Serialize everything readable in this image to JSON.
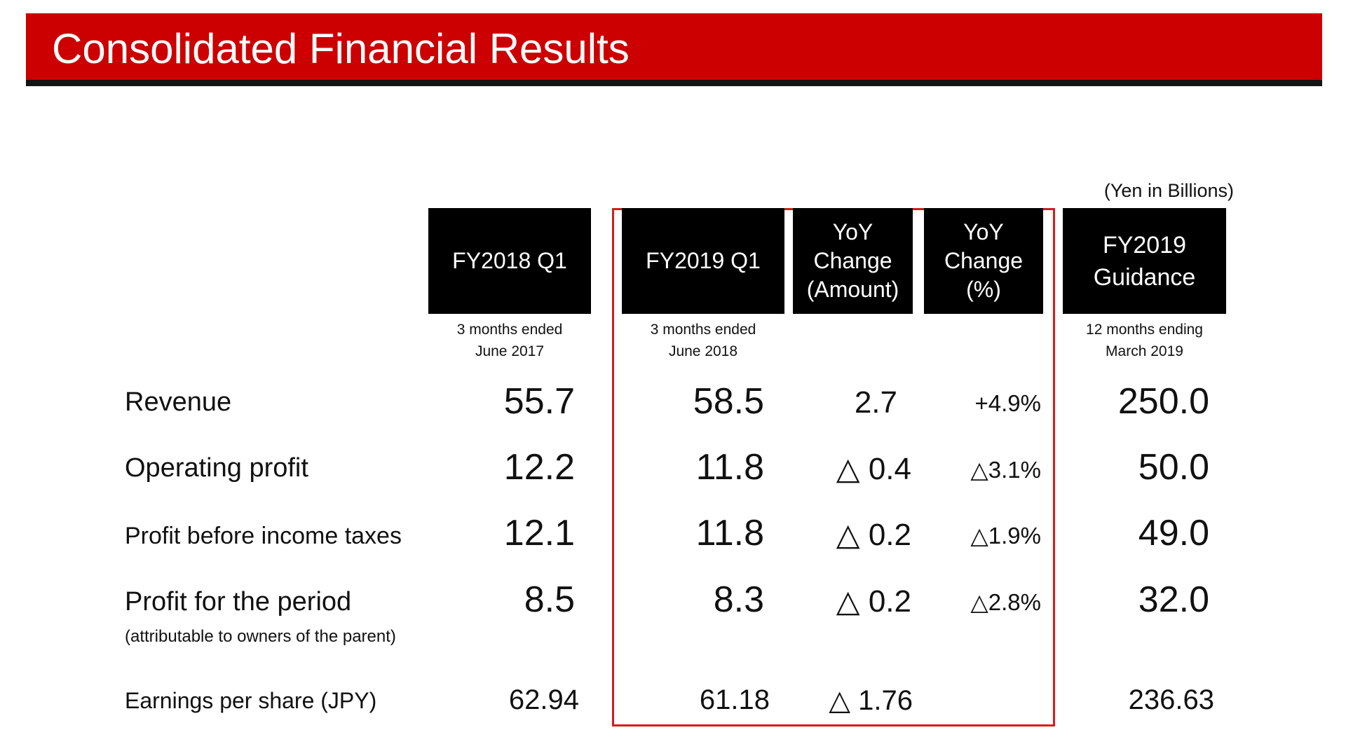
{
  "title": "Consolidated Financial Results",
  "units": "(Yen in Billions)",
  "columns": [
    {
      "header": "FY2018 Q1",
      "sub": "3 months ended\nJune 2017"
    },
    {
      "header": "FY2019 Q1",
      "sub": "3 months ended\nJune 2018"
    },
    {
      "header": "YoY\nChange\n(Amount)",
      "sub": ""
    },
    {
      "header": "YoY\nChange\n(%)",
      "sub": ""
    },
    {
      "header": "FY2019\nGuidance",
      "sub": "12 months ending\nMarch 2019"
    }
  ],
  "rows": [
    {
      "label": "Revenue",
      "values": [
        "55.7",
        "58.5",
        "2.7",
        "+4.9%",
        "250.0"
      ]
    },
    {
      "label": "Operating profit",
      "values": [
        "12.2",
        "11.8",
        "△ 0.4",
        "△3.1%",
        "50.0"
      ]
    },
    {
      "label": "Profit before income taxes",
      "values": [
        "12.1",
        "11.8",
        "△ 0.2",
        "△1.9%",
        "49.0"
      ]
    },
    {
      "label": "Profit for the period",
      "sublabel": "(attributable to owners of the parent)",
      "values": [
        "8.5",
        "8.3",
        "△ 0.2",
        "△2.8%",
        "32.0"
      ]
    },
    {
      "label": "Earnings per share (JPY)",
      "values": [
        "62.94",
        "61.18",
        "△ 1.76",
        "",
        "236.63"
      ]
    }
  ]
}
